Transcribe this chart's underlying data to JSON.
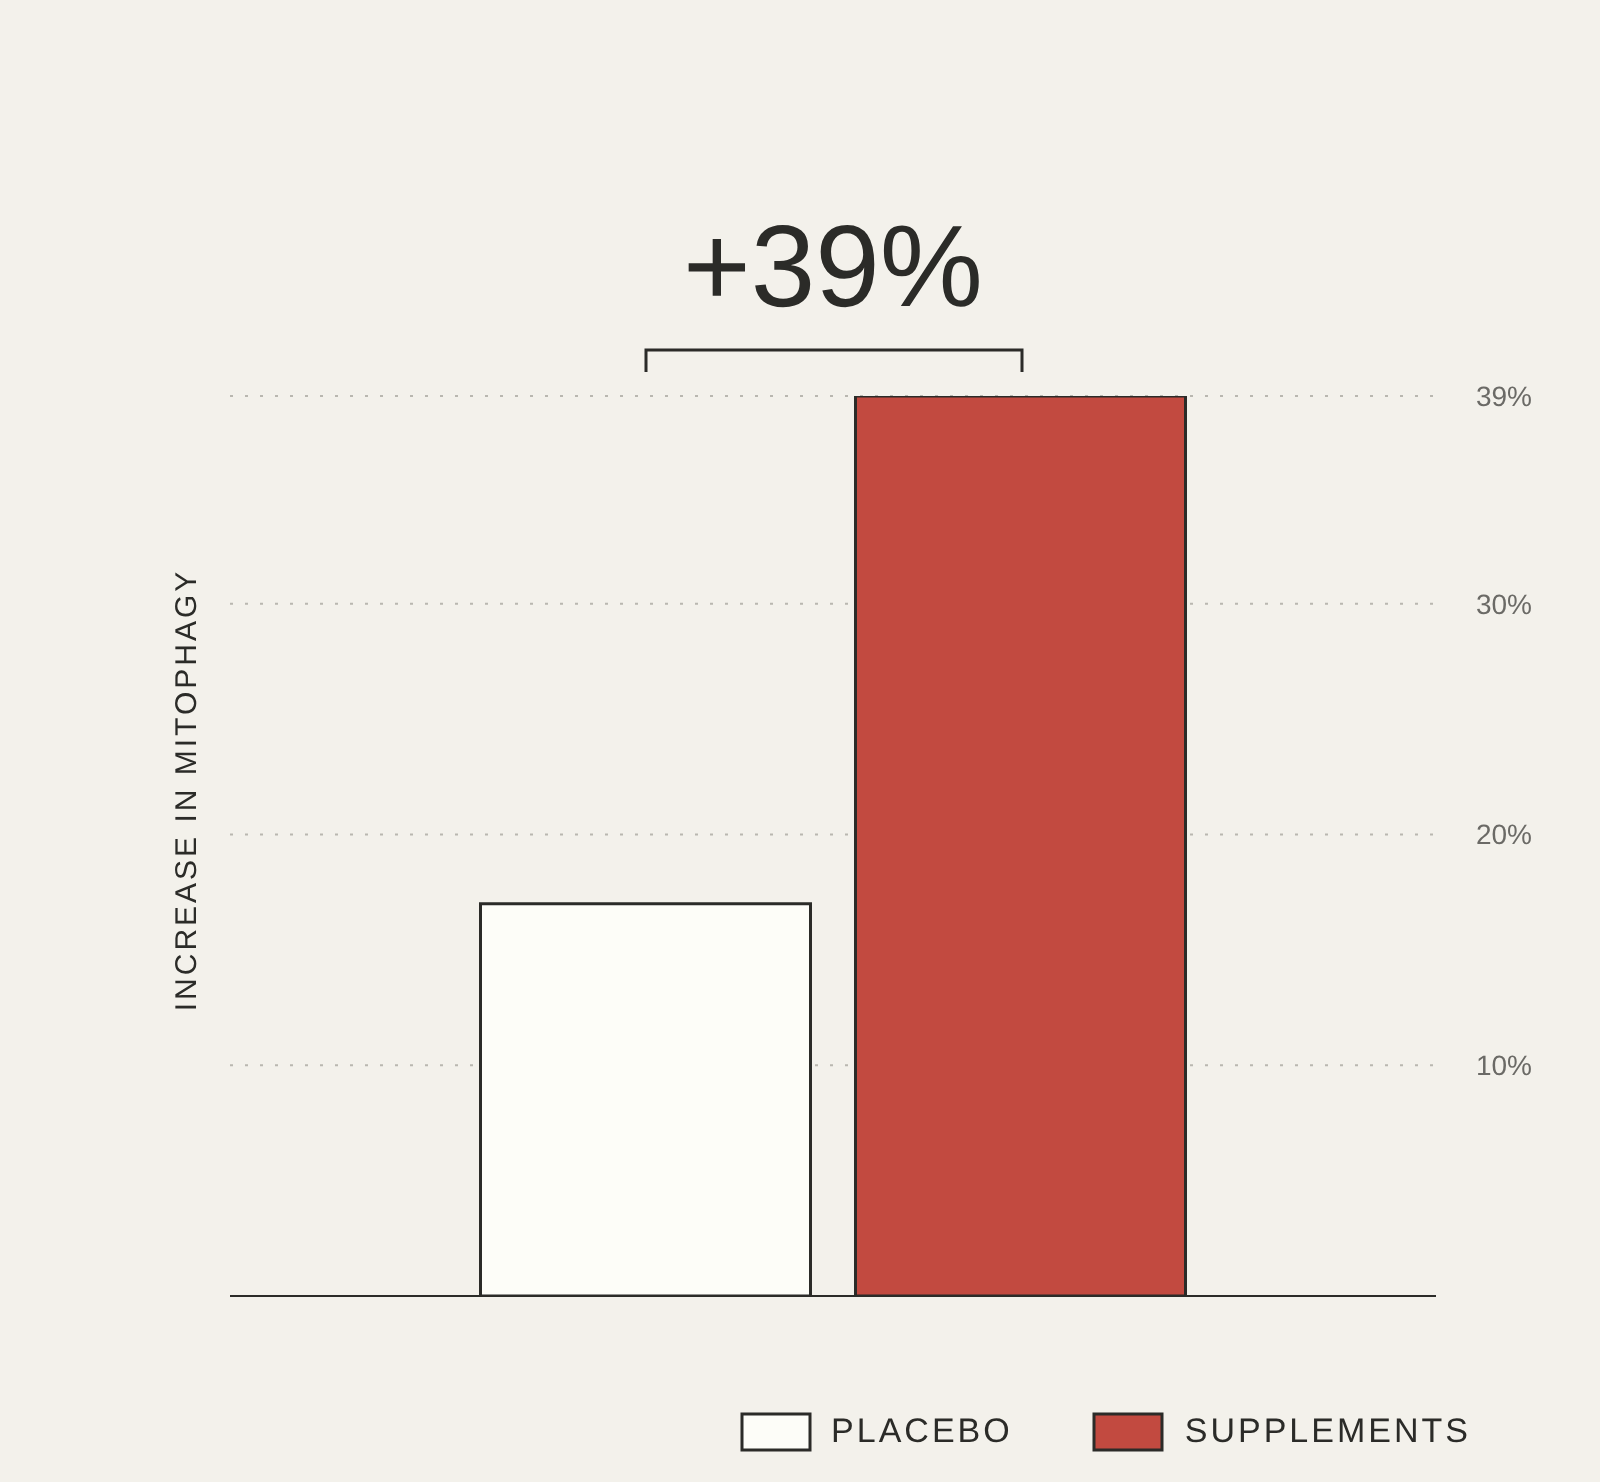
{
  "chart_data": {
    "type": "bar",
    "stacked": true,
    "annotations": [
      "+39%"
    ],
    "ylabel": "INCREASE IN MITOPHAGY",
    "categories": [
      null,
      null
    ],
    "series": [
      {
        "name": "PLACEBO",
        "color": "#fdfdf8",
        "values": [
          17,
          null
        ]
      },
      {
        "name": "SUPPLEMENTS",
        "color": "#c24a40",
        "values": [
          null,
          39
        ]
      }
    ],
    "ylim": [
      0,
      39
    ],
    "yticks": [
      {
        "value": 10,
        "label": "10%"
      },
      {
        "value": 20,
        "label": "20%"
      },
      {
        "value": 30,
        "label": "30%"
      },
      {
        "value": 39,
        "label": "39%"
      }
    ],
    "grid": "y",
    "legend": "bottom"
  }
}
